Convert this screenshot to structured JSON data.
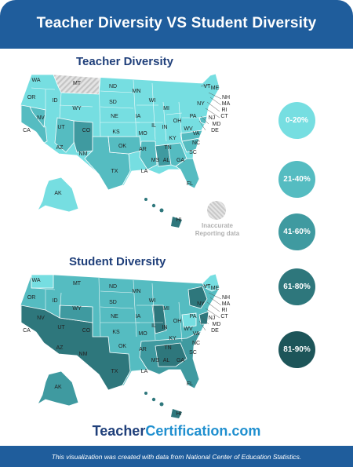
{
  "header": {
    "title": "Teacher Diversity VS Student Diversity"
  },
  "maps": {
    "teacher": {
      "title": "Teacher Diversity"
    },
    "student": {
      "title": "Student Diversity"
    },
    "state_labels": [
      "WA",
      "OR",
      "CA",
      "NV",
      "ID",
      "MT",
      "WY",
      "UT",
      "AZ",
      "CO",
      "NM",
      "ND",
      "SD",
      "NE",
      "KS",
      "OK",
      "TX",
      "MN",
      "IA",
      "MO",
      "AR",
      "LA",
      "WI",
      "IL",
      "MS",
      "MI",
      "IN",
      "KY",
      "TN",
      "AL",
      "OH",
      "GA",
      "FL",
      "SC",
      "NC",
      "VA",
      "WV",
      "PA",
      "NY",
      "VT",
      "NH",
      "ME",
      "MA",
      "RI",
      "CT",
      "NJ",
      "MD",
      "DE",
      "AK",
      "HI"
    ]
  },
  "legend": {
    "items": [
      {
        "label": "0-20%",
        "color": "#76dee1",
        "text_color": "#ffffff"
      },
      {
        "label": "21-40%",
        "color": "#55bcc1",
        "text_color": "#ffffff"
      },
      {
        "label": "41-60%",
        "color": "#3f9aa0",
        "text_color": "#ffffff"
      },
      {
        "label": "61-80%",
        "color": "#2e777c",
        "text_color": "#ffffff"
      },
      {
        "label": "81-90%",
        "color": "#1d5559",
        "text_color": "#ffffff"
      }
    ],
    "inaccurate_label": "Inaccurate Reporting data"
  },
  "brand": {
    "part1": "Teacher",
    "part2": "Certification.com"
  },
  "footer": {
    "note": "This visualization was created with data from National Center of Education Statistics."
  }
}
